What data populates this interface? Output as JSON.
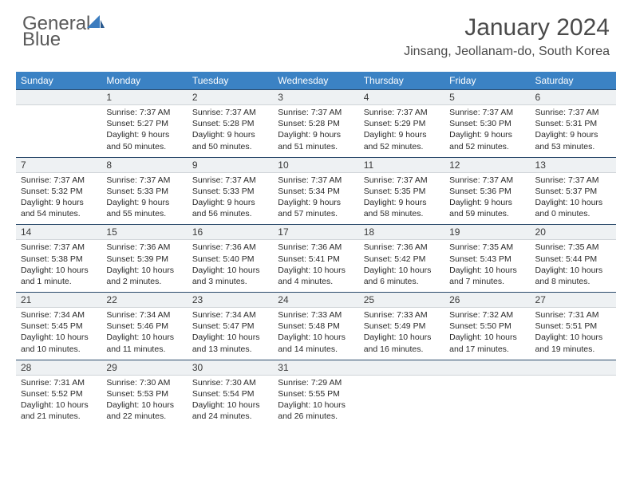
{
  "logo": {
    "word1": "General",
    "word2": "Blue"
  },
  "title": "January 2024",
  "location": "Jinsang, Jeollanam-do, South Korea",
  "colors": {
    "header_bg": "#3b82c4",
    "header_text": "#ffffff",
    "daynum_bg": "#eef1f3",
    "daynum_border_top": "#2b4a6b",
    "logo_gray": "#5a5a5a",
    "logo_blue": "#3b7cbf"
  },
  "weekdays": [
    "Sunday",
    "Monday",
    "Tuesday",
    "Wednesday",
    "Thursday",
    "Friday",
    "Saturday"
  ],
  "weeks": [
    {
      "nums": [
        "",
        "1",
        "2",
        "3",
        "4",
        "5",
        "6"
      ],
      "cells": [
        "",
        "Sunrise: 7:37 AM\nSunset: 5:27 PM\nDaylight: 9 hours and 50 minutes.",
        "Sunrise: 7:37 AM\nSunset: 5:28 PM\nDaylight: 9 hours and 50 minutes.",
        "Sunrise: 7:37 AM\nSunset: 5:28 PM\nDaylight: 9 hours and 51 minutes.",
        "Sunrise: 7:37 AM\nSunset: 5:29 PM\nDaylight: 9 hours and 52 minutes.",
        "Sunrise: 7:37 AM\nSunset: 5:30 PM\nDaylight: 9 hours and 52 minutes.",
        "Sunrise: 7:37 AM\nSunset: 5:31 PM\nDaylight: 9 hours and 53 minutes."
      ]
    },
    {
      "nums": [
        "7",
        "8",
        "9",
        "10",
        "11",
        "12",
        "13"
      ],
      "cells": [
        "Sunrise: 7:37 AM\nSunset: 5:32 PM\nDaylight: 9 hours and 54 minutes.",
        "Sunrise: 7:37 AM\nSunset: 5:33 PM\nDaylight: 9 hours and 55 minutes.",
        "Sunrise: 7:37 AM\nSunset: 5:33 PM\nDaylight: 9 hours and 56 minutes.",
        "Sunrise: 7:37 AM\nSunset: 5:34 PM\nDaylight: 9 hours and 57 minutes.",
        "Sunrise: 7:37 AM\nSunset: 5:35 PM\nDaylight: 9 hours and 58 minutes.",
        "Sunrise: 7:37 AM\nSunset: 5:36 PM\nDaylight: 9 hours and 59 minutes.",
        "Sunrise: 7:37 AM\nSunset: 5:37 PM\nDaylight: 10 hours and 0 minutes."
      ]
    },
    {
      "nums": [
        "14",
        "15",
        "16",
        "17",
        "18",
        "19",
        "20"
      ],
      "cells": [
        "Sunrise: 7:37 AM\nSunset: 5:38 PM\nDaylight: 10 hours and 1 minute.",
        "Sunrise: 7:36 AM\nSunset: 5:39 PM\nDaylight: 10 hours and 2 minutes.",
        "Sunrise: 7:36 AM\nSunset: 5:40 PM\nDaylight: 10 hours and 3 minutes.",
        "Sunrise: 7:36 AM\nSunset: 5:41 PM\nDaylight: 10 hours and 4 minutes.",
        "Sunrise: 7:36 AM\nSunset: 5:42 PM\nDaylight: 10 hours and 6 minutes.",
        "Sunrise: 7:35 AM\nSunset: 5:43 PM\nDaylight: 10 hours and 7 minutes.",
        "Sunrise: 7:35 AM\nSunset: 5:44 PM\nDaylight: 10 hours and 8 minutes."
      ]
    },
    {
      "nums": [
        "21",
        "22",
        "23",
        "24",
        "25",
        "26",
        "27"
      ],
      "cells": [
        "Sunrise: 7:34 AM\nSunset: 5:45 PM\nDaylight: 10 hours and 10 minutes.",
        "Sunrise: 7:34 AM\nSunset: 5:46 PM\nDaylight: 10 hours and 11 minutes.",
        "Sunrise: 7:34 AM\nSunset: 5:47 PM\nDaylight: 10 hours and 13 minutes.",
        "Sunrise: 7:33 AM\nSunset: 5:48 PM\nDaylight: 10 hours and 14 minutes.",
        "Sunrise: 7:33 AM\nSunset: 5:49 PM\nDaylight: 10 hours and 16 minutes.",
        "Sunrise: 7:32 AM\nSunset: 5:50 PM\nDaylight: 10 hours and 17 minutes.",
        "Sunrise: 7:31 AM\nSunset: 5:51 PM\nDaylight: 10 hours and 19 minutes."
      ]
    },
    {
      "nums": [
        "28",
        "29",
        "30",
        "31",
        "",
        "",
        ""
      ],
      "cells": [
        "Sunrise: 7:31 AM\nSunset: 5:52 PM\nDaylight: 10 hours and 21 minutes.",
        "Sunrise: 7:30 AM\nSunset: 5:53 PM\nDaylight: 10 hours and 22 minutes.",
        "Sunrise: 7:30 AM\nSunset: 5:54 PM\nDaylight: 10 hours and 24 minutes.",
        "Sunrise: 7:29 AM\nSunset: 5:55 PM\nDaylight: 10 hours and 26 minutes.",
        "",
        "",
        ""
      ]
    }
  ]
}
